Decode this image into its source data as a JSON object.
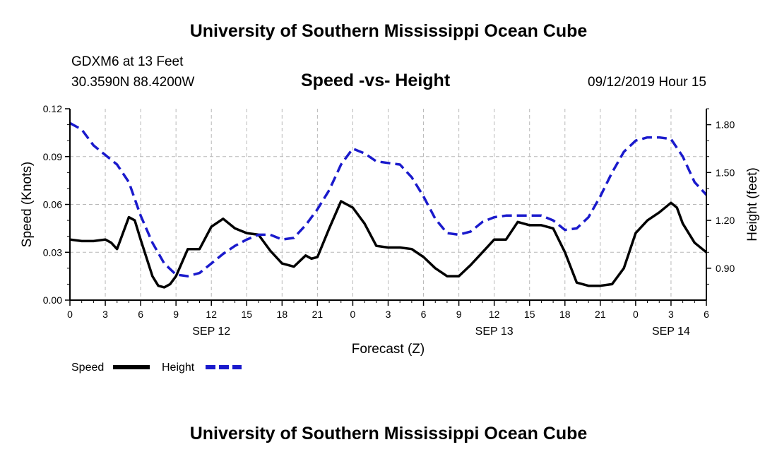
{
  "header": {
    "title": "University of Southern Mississippi Ocean Cube",
    "station": "GDXM6 at 13 Feet",
    "coords": "30.3590N 88.4200W",
    "subtitle": "Speed -vs- Height",
    "datetime": "09/12/2019 Hour 15"
  },
  "footer": {
    "title": "University of Southern Mississippi Ocean Cube"
  },
  "chart_data": {
    "type": "line",
    "title": "Speed -vs- Height",
    "xlabel": "Forecast (Z)",
    "ylabel": "Speed (Knots)",
    "y2label": "Height (feet)",
    "grid": true,
    "x_range": [
      0,
      54
    ],
    "x_ticks": [
      0,
      3,
      6,
      9,
      12,
      15,
      18,
      21,
      24,
      27,
      30,
      33,
      36,
      39,
      42,
      45,
      48,
      51,
      54
    ],
    "x_tick_labels": [
      "0",
      "3",
      "6",
      "9",
      "12",
      "15",
      "18",
      "21",
      "0",
      "3",
      "6",
      "9",
      "12",
      "15",
      "18",
      "21",
      "0",
      "3",
      "6"
    ],
    "date_labels": [
      {
        "x": 12,
        "label": "SEP 12"
      },
      {
        "x": 36,
        "label": "SEP 13"
      },
      {
        "x": 51,
        "label": "SEP 14"
      }
    ],
    "y_range": [
      0,
      0.12
    ],
    "y_ticks": [
      0,
      0.03,
      0.06,
      0.09,
      0.12
    ],
    "y_tick_labels": [
      "0.00",
      "0.03",
      "0.06",
      "0.09",
      "0.12"
    ],
    "y2_range": [
      0.7,
      1.9
    ],
    "y2_ticks": [
      0.9,
      1.2,
      1.5,
      1.8
    ],
    "y2_tick_labels": [
      "0.90",
      "1.20",
      "1.50",
      "1.80"
    ],
    "legend": [
      {
        "name": "Speed",
        "color": "#000000",
        "dash": "solid"
      },
      {
        "name": "Height",
        "color": "#1a1acc",
        "dash": "dashed"
      }
    ],
    "series": [
      {
        "name": "Speed",
        "axis": "left",
        "color": "#000000",
        "x": [
          0,
          1,
          2,
          3,
          3.5,
          4,
          5,
          5.5,
          6,
          7,
          7.5,
          8,
          8.5,
          9,
          10,
          11,
          12,
          13,
          14,
          15,
          16,
          17,
          18,
          19,
          20,
          20.5,
          21,
          22,
          23,
          24,
          25,
          26,
          27,
          28,
          29,
          30,
          31,
          32,
          33,
          34,
          35,
          36,
          37,
          38,
          39,
          40,
          41,
          42,
          43,
          44,
          45,
          46,
          47,
          48,
          49,
          50,
          51,
          51.5,
          52,
          53,
          54
        ],
        "y": [
          0.038,
          0.037,
          0.037,
          0.038,
          0.036,
          0.032,
          0.052,
          0.05,
          0.038,
          0.015,
          0.009,
          0.008,
          0.01,
          0.015,
          0.032,
          0.032,
          0.046,
          0.051,
          0.045,
          0.042,
          0.041,
          0.031,
          0.023,
          0.021,
          0.028,
          0.026,
          0.027,
          0.045,
          0.062,
          0.058,
          0.048,
          0.034,
          0.033,
          0.033,
          0.032,
          0.027,
          0.02,
          0.015,
          0.015,
          0.022,
          0.03,
          0.038,
          0.038,
          0.049,
          0.047,
          0.047,
          0.045,
          0.03,
          0.011,
          0.009,
          0.009,
          0.01,
          0.02,
          0.042,
          0.05,
          0.055,
          0.061,
          0.058,
          0.048,
          0.036,
          0.03
        ]
      },
      {
        "name": "Height",
        "axis": "right",
        "color": "#1a1acc",
        "x": [
          0,
          1,
          2,
          3,
          4,
          5,
          6,
          7,
          8,
          9,
          10,
          11,
          12,
          13,
          14,
          15,
          16,
          17,
          18,
          19,
          20,
          21,
          22,
          23,
          24,
          25,
          26,
          27,
          28,
          29,
          30,
          31,
          32,
          33,
          34,
          35,
          36,
          37,
          38,
          39,
          40,
          41,
          42,
          43,
          44,
          45,
          46,
          47,
          48,
          49,
          50,
          51,
          52,
          53,
          54
        ],
        "y": [
          1.81,
          1.77,
          1.67,
          1.61,
          1.55,
          1.44,
          1.23,
          1.06,
          0.93,
          0.86,
          0.85,
          0.87,
          0.93,
          0.99,
          1.04,
          1.08,
          1.11,
          1.11,
          1.08,
          1.09,
          1.17,
          1.27,
          1.39,
          1.55,
          1.65,
          1.62,
          1.57,
          1.56,
          1.55,
          1.47,
          1.35,
          1.21,
          1.12,
          1.11,
          1.13,
          1.19,
          1.22,
          1.23,
          1.23,
          1.23,
          1.23,
          1.2,
          1.14,
          1.15,
          1.22,
          1.35,
          1.5,
          1.63,
          1.7,
          1.72,
          1.72,
          1.71,
          1.6,
          1.44,
          1.36
        ]
      }
    ]
  }
}
